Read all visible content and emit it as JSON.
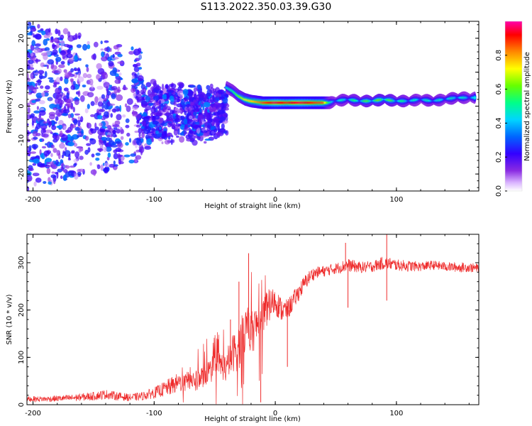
{
  "figure_title": "S113.2022.350.03.39.G30",
  "chart_data": [
    {
      "type": "heatmap",
      "title": "",
      "xlabel": "Height of straight line (km)",
      "ylabel": "Frequency (Hz)",
      "xlim": [
        -205,
        168
      ],
      "ylim": [
        -25,
        25
      ],
      "xticks": [
        -200,
        -100,
        0,
        100
      ],
      "yticks": [
        -20,
        -10,
        0,
        10,
        20
      ],
      "colorbar": {
        "label": "Normalized spectral amplitude",
        "range": [
          0.0,
          1.0
        ],
        "ticks": [
          0.0,
          0.2,
          0.4,
          0.6,
          0.8
        ],
        "colormap": "rainbow-white (white, purple, blue, cyan, green, yellow, orange, red, magenta)"
      },
      "ridge": {
        "description": "peak spectral amplitude track vs height",
        "x": [
          -40,
          -35,
          -30,
          -25,
          -20,
          -10,
          0,
          10,
          20,
          30,
          40,
          45,
          50,
          60,
          70,
          80,
          90,
          100,
          110,
          120,
          130,
          140,
          150,
          160,
          165
        ],
        "frequency": [
          5.5,
          4.5,
          3.0,
          2.0,
          1.5,
          1.0,
          1.0,
          1.0,
          1.0,
          1.0,
          1.0,
          1.0,
          1.5,
          2.0,
          1.5,
          1.5,
          2.0,
          1.5,
          1.5,
          2.0,
          1.5,
          2.0,
          2.5,
          2.5,
          2.5
        ],
        "amplitude": [
          0.45,
          0.5,
          0.6,
          0.7,
          0.75,
          0.85,
          0.95,
          0.9,
          0.95,
          0.9,
          0.85,
          0.5,
          0.45,
          0.5,
          0.55,
          0.6,
          0.65,
          0.55,
          0.5,
          0.45,
          0.5,
          0.45,
          0.5,
          0.45,
          0.45
        ]
      },
      "diffuse_region": {
        "description": "scattered low-amplitude energy below about -40 km",
        "x_range": [
          -205,
          -40
        ],
        "frequency_range": [
          -25,
          25
        ],
        "amplitude_range": [
          0.05,
          0.35
        ]
      }
    },
    {
      "type": "line",
      "title": "",
      "xlabel": "Height of straight line (km)",
      "ylabel": "SNR (10 * v/v)",
      "xlim": [
        -205,
        168
      ],
      "ylim": [
        0,
        360
      ],
      "xticks": [
        -200,
        -100,
        0,
        100
      ],
      "yticks": [
        0,
        100,
        200,
        300
      ],
      "color": "#ee2a2a",
      "series": [
        {
          "x": [
            -205,
            -190,
            -170,
            -150,
            -140,
            -130,
            -120,
            -110,
            -100,
            -95,
            -90,
            -85,
            -80,
            -75,
            -70,
            -65,
            -60,
            -55,
            -50,
            -45,
            -40,
            -35,
            -30,
            -25,
            -20,
            -15,
            -10,
            -5,
            0,
            5,
            10,
            15,
            20,
            25,
            30,
            35,
            40,
            50,
            60,
            70,
            80,
            90,
            100,
            110,
            120,
            130,
            140,
            150,
            160,
            168
          ],
          "values": [
            12,
            12,
            14,
            18,
            22,
            18,
            15,
            18,
            25,
            30,
            35,
            40,
            48,
            45,
            55,
            50,
            60,
            70,
            80,
            85,
            75,
            110,
            120,
            160,
            150,
            170,
            190,
            210,
            220,
            200,
            200,
            220,
            240,
            260,
            275,
            280,
            282,
            288,
            295,
            290,
            292,
            300,
            295,
            293,
            292,
            295,
            292,
            290,
            290,
            288
          ],
          "noise": [
            6,
            6,
            7,
            9,
            10,
            9,
            8,
            9,
            12,
            14,
            17,
            20,
            20,
            20,
            22,
            22,
            24,
            26,
            30,
            30,
            30,
            40,
            50,
            50,
            45,
            45,
            40,
            35,
            30,
            25,
            22,
            20,
            18,
            16,
            14,
            12,
            12,
            12,
            14,
            12,
            12,
            14,
            12,
            12,
            10,
            10,
            10,
            10,
            10,
            10
          ]
        }
      ],
      "spikes": [
        {
          "x": -22,
          "value": 320
        },
        {
          "x": -30,
          "value": 260
        },
        {
          "x": -37,
          "value": 180
        },
        {
          "x": 58,
          "value": 342
        },
        {
          "x": 92,
          "value": 360
        },
        {
          "x": 92,
          "value": 220
        },
        {
          "x": 60,
          "value": 205
        },
        {
          "x": 10,
          "value": 80
        },
        {
          "x": -12,
          "value": 5
        }
      ]
    }
  ]
}
